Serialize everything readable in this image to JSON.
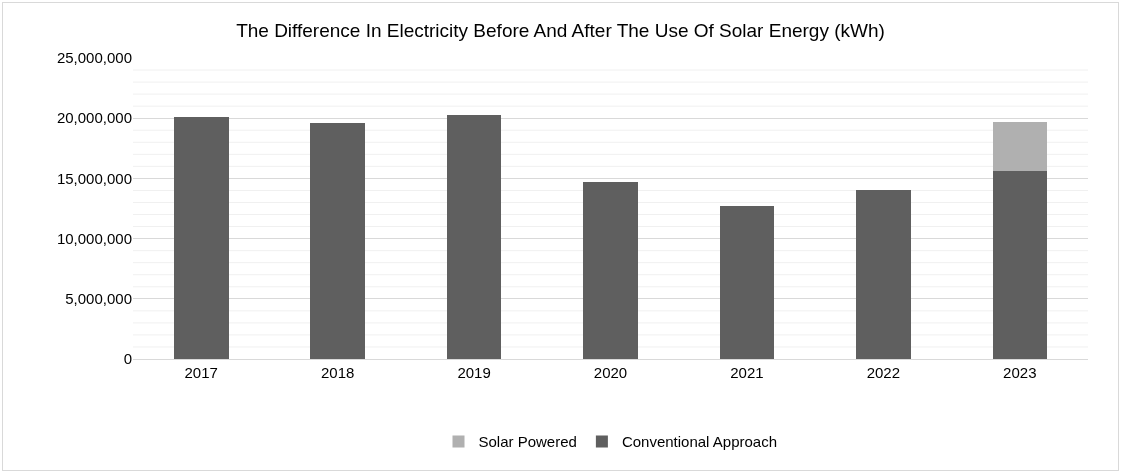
{
  "chart_data": {
    "type": "bar",
    "title": "The Difference In Electricity Before And After The Use Of Solar Energy (kWh)",
    "categories": [
      "2017",
      "2018",
      "2019",
      "2020",
      "2021",
      "2022",
      "2023"
    ],
    "stacked": true,
    "series": [
      {
        "name": "Conventional Approach",
        "color": "#5f5f5f",
        "values": [
          20100000,
          19600000,
          20300000,
          14700000,
          12700000,
          14000000,
          15600000
        ]
      },
      {
        "name": "Solar Powered",
        "color": "#b0b0b0",
        "values": [
          null,
          null,
          null,
          null,
          null,
          null,
          4100000
        ]
      }
    ],
    "ylim": [
      0,
      25000000
    ],
    "yticks": [
      {
        "value": 0,
        "label": "0"
      },
      {
        "value": 5000000,
        "label": "5,000,000"
      },
      {
        "value": 10000000,
        "label": "10,000,000"
      },
      {
        "value": 15000000,
        "label": "15,000,000"
      },
      {
        "value": 20000000,
        "label": "20,000,000"
      },
      {
        "value": 25000000,
        "label": "25,000,000"
      }
    ],
    "grid": true,
    "legend": "bottom"
  }
}
